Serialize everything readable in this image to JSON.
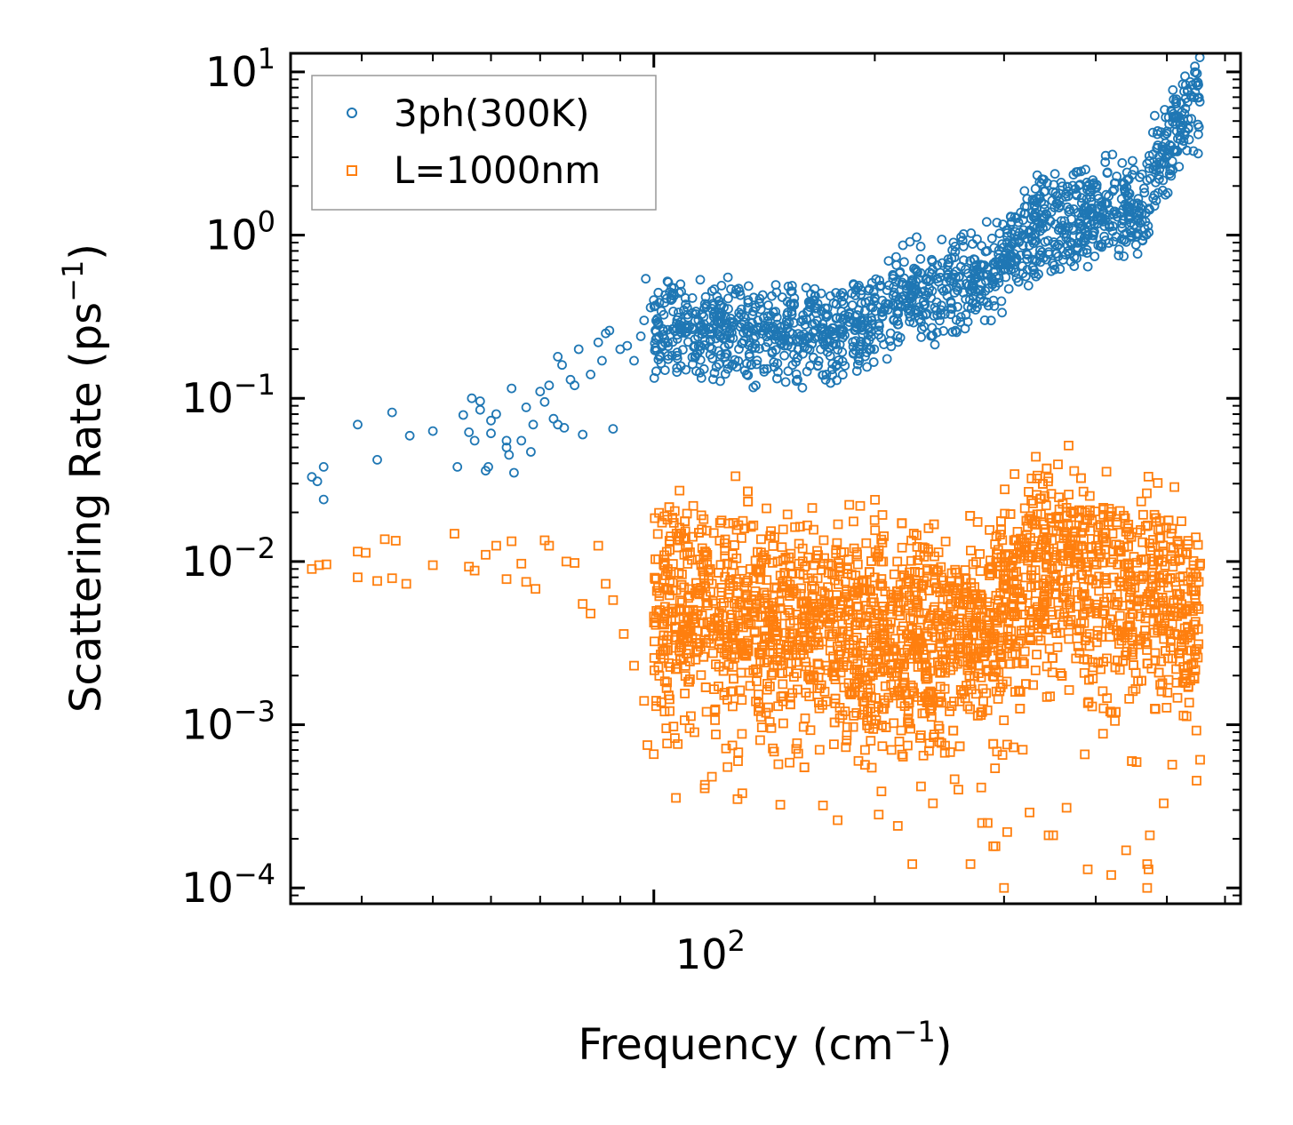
{
  "chart_data": {
    "type": "scatter",
    "xscale": "log",
    "yscale": "log",
    "xlabel_base": "Frequency (cm",
    "xlabel_exp": "−1",
    "xlabel_end": ")",
    "ylabel_base": "Scattering Rate (ps",
    "ylabel_exp": "−1",
    "ylabel_end": ")",
    "xlim": [
      32,
      630
    ],
    "ylim": [
      8e-05,
      13
    ],
    "x_tick_labels": [
      {
        "value": 100,
        "base": "10",
        "exp": "2"
      }
    ],
    "y_tick_labels": [
      {
        "value": 10,
        "base": "10",
        "exp": "1"
      },
      {
        "value": 1,
        "base": "10",
        "exp": "0"
      },
      {
        "value": 0.1,
        "base": "10",
        "exp": "−1"
      },
      {
        "value": 0.01,
        "base": "10",
        "exp": "−2"
      },
      {
        "value": 0.001,
        "base": "10",
        "exp": "−3"
      },
      {
        "value": 0.0001,
        "base": "10",
        "exp": "−4"
      }
    ],
    "legend_position": "upper-left",
    "series": [
      {
        "name": "3ph(300K)",
        "marker": "circle",
        "color": "#1f77b4",
        "trend": [
          [
            34,
            0.032
          ],
          [
            40,
            0.045
          ],
          [
            50,
            0.065
          ],
          [
            60,
            0.08
          ],
          [
            70,
            0.1
          ],
          [
            80,
            0.14
          ],
          [
            90,
            0.2
          ],
          [
            100,
            0.28
          ],
          [
            110,
            0.28
          ],
          [
            130,
            0.25
          ],
          [
            160,
            0.24
          ],
          [
            180,
            0.26
          ],
          [
            200,
            0.3
          ],
          [
            220,
            0.45
          ],
          [
            240,
            0.45
          ],
          [
            260,
            0.5
          ],
          [
            280,
            0.55
          ],
          [
            300,
            0.7
          ],
          [
            330,
            1.1
          ],
          [
            360,
            1.2
          ],
          [
            400,
            1.4
          ],
          [
            430,
            1.6
          ],
          [
            460,
            1.3
          ],
          [
            480,
            2.5
          ],
          [
            500,
            3.5
          ],
          [
            530,
            5.0
          ],
          [
            555,
            6.8
          ]
        ],
        "points": [
          [
            34.2,
            0.033
          ],
          [
            34.8,
            0.031
          ],
          [
            35.5,
            0.038
          ],
          [
            35.5,
            0.024
          ],
          [
            39.5,
            0.069
          ],
          [
            42,
            0.042
          ],
          [
            44,
            0.082
          ],
          [
            46.5,
            0.059
          ],
          [
            50,
            0.063
          ],
          [
            54,
            0.038
          ],
          [
            55,
            0.079
          ],
          [
            56,
            0.062
          ],
          [
            56.5,
            0.1
          ],
          [
            57,
            0.055
          ],
          [
            58,
            0.096
          ],
          [
            58,
            0.085
          ],
          [
            59,
            0.036
          ],
          [
            59.5,
            0.038
          ],
          [
            60,
            0.073
          ],
          [
            60,
            0.061
          ],
          [
            61,
            0.08
          ],
          [
            63,
            0.05
          ],
          [
            63,
            0.055
          ],
          [
            63.5,
            0.045
          ],
          [
            64,
            0.115
          ],
          [
            64.5,
            0.035
          ],
          [
            66,
            0.055
          ],
          [
            67,
            0.088
          ],
          [
            68,
            0.047
          ],
          [
            68.5,
            0.069
          ],
          [
            70,
            0.11
          ],
          [
            71,
            0.095
          ],
          [
            72,
            0.12
          ],
          [
            73,
            0.075
          ],
          [
            74,
            0.069
          ],
          [
            74,
            0.18
          ],
          [
            75,
            0.16
          ],
          [
            75.5,
            0.066
          ],
          [
            77,
            0.13
          ],
          [
            78,
            0.12
          ],
          [
            79,
            0.2
          ],
          [
            80,
            0.06
          ],
          [
            82,
            0.14
          ],
          [
            84,
            0.22
          ],
          [
            85,
            0.17
          ],
          [
            86,
            0.25
          ],
          [
            87,
            0.26
          ],
          [
            88,
            0.065
          ],
          [
            90,
            0.2
          ],
          [
            92,
            0.21
          ],
          [
            94,
            0.17
          ],
          [
            96,
            0.24
          ],
          [
            97,
            0.3
          ],
          [
            97.5,
            0.54
          ],
          [
            99,
            0.36
          ],
          [
            100,
            0.4
          ]
        ]
      },
      {
        "name": "L=1000nm",
        "marker": "square",
        "color": "#ff7f0e",
        "trend": [
          [
            34,
            0.009
          ],
          [
            50,
            0.0095
          ],
          [
            70,
            0.009
          ],
          [
            90,
            0.0085
          ],
          [
            100,
            0.007
          ],
          [
            120,
            0.0055
          ],
          [
            150,
            0.005
          ],
          [
            200,
            0.0045
          ],
          [
            250,
            0.004
          ],
          [
            290,
            0.005
          ],
          [
            310,
            0.008
          ],
          [
            330,
            0.012
          ],
          [
            350,
            0.011
          ],
          [
            370,
            0.012
          ],
          [
            390,
            0.01
          ],
          [
            420,
            0.008
          ],
          [
            450,
            0.006
          ],
          [
            470,
            0.008
          ],
          [
            500,
            0.007
          ],
          [
            540,
            0.005
          ],
          [
            555,
            0.005
          ]
        ],
        "points": [
          [
            34.2,
            0.009
          ],
          [
            35,
            0.0095
          ],
          [
            35.8,
            0.0096
          ],
          [
            39.5,
            0.0115
          ],
          [
            39.5,
            0.008
          ],
          [
            40.5,
            0.0113
          ],
          [
            42,
            0.0076
          ],
          [
            43,
            0.0137
          ],
          [
            44,
            0.0079
          ],
          [
            44.5,
            0.0134
          ],
          [
            46,
            0.0073
          ],
          [
            50,
            0.0095
          ],
          [
            53.5,
            0.0148
          ],
          [
            56,
            0.0093
          ],
          [
            57,
            0.0088
          ],
          [
            59,
            0.011
          ],
          [
            61,
            0.0125
          ],
          [
            63,
            0.0078
          ],
          [
            64,
            0.0133
          ],
          [
            66,
            0.0097
          ],
          [
            67,
            0.0075
          ],
          [
            69,
            0.0068
          ],
          [
            71,
            0.0135
          ],
          [
            72,
            0.0125
          ],
          [
            76,
            0.01
          ],
          [
            78,
            0.0098
          ],
          [
            80,
            0.0055
          ],
          [
            82,
            0.0048
          ],
          [
            84,
            0.0125
          ],
          [
            86,
            0.0073
          ],
          [
            88,
            0.0058
          ],
          [
            91,
            0.0036
          ],
          [
            94,
            0.0023
          ],
          [
            97,
            0.0014
          ],
          [
            98,
            0.00075
          ],
          [
            100,
            0.00066
          ],
          [
            104,
            0.00095
          ],
          [
            112,
            0.0019
          ],
          [
            118,
            0.0012
          ],
          [
            120,
            0.00048
          ],
          [
            126,
            0.00055
          ],
          [
            130,
            0.00035
          ],
          [
            132,
            0.00038
          ],
          [
            150,
            0.0015
          ],
          [
            160,
            0.00097
          ],
          [
            170,
            0.00032
          ],
          [
            178,
            0.00026
          ],
          [
            190,
            0.0006
          ],
          [
            200,
            0.0012
          ],
          [
            215,
            0.00024
          ],
          [
            225,
            0.00014
          ],
          [
            240,
            0.00033
          ],
          [
            260,
            0.0004
          ],
          [
            270,
            0.00014
          ],
          [
            280,
            0.00025
          ],
          [
            285,
            0.00025
          ],
          [
            290,
            0.00018
          ],
          [
            292,
            0.00018
          ],
          [
            300,
            0.0001
          ],
          [
            303,
            0.00022
          ],
          [
            325,
            0.00029
          ],
          [
            345,
            0.00021
          ],
          [
            350,
            0.00021
          ],
          [
            365,
            0.00031
          ],
          [
            390,
            0.00013
          ],
          [
            420,
            0.00012
          ],
          [
            440,
            0.00017
          ],
          [
            470,
            0.0001
          ],
          [
            472,
            0.00013
          ],
          [
            474,
            0.00021
          ],
          [
            470,
            0.00014
          ],
          [
            495,
            0.00033
          ],
          [
            555,
            0.00061
          ]
        ]
      }
    ]
  }
}
